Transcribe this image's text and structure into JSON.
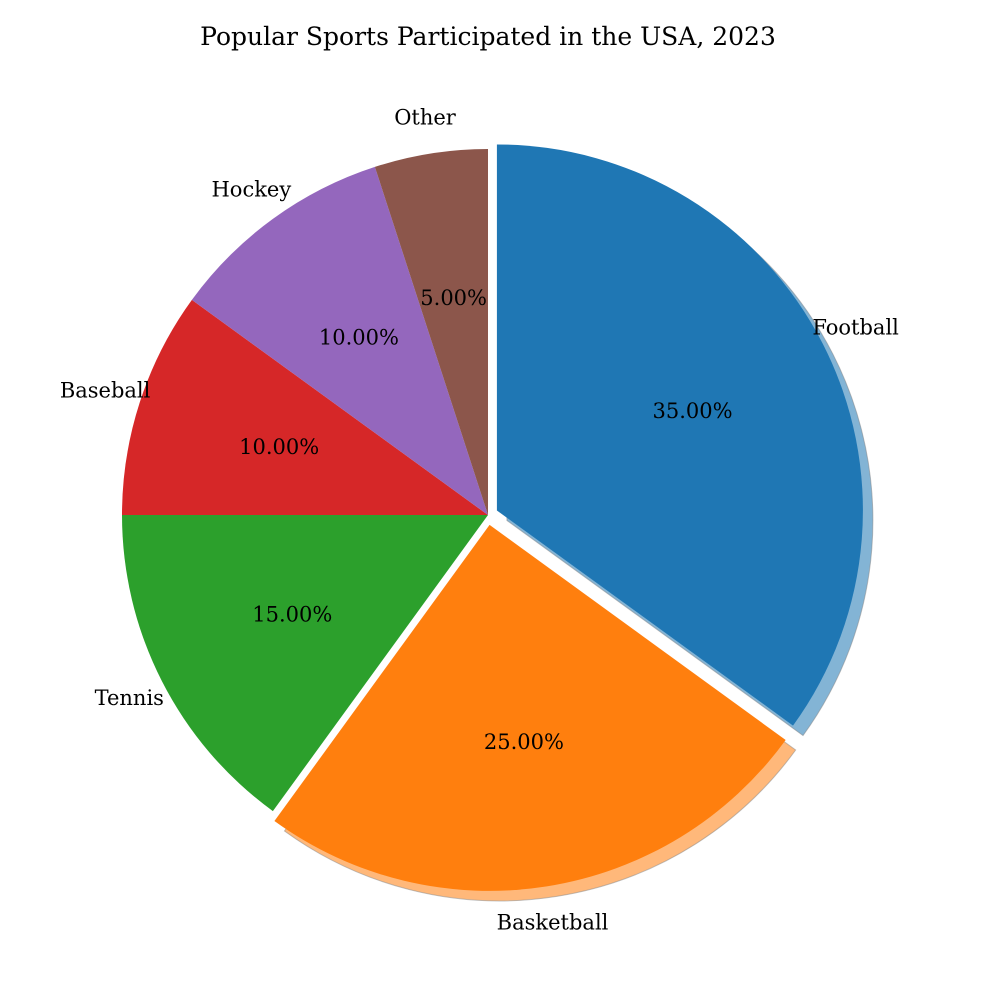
{
  "chart_data": {
    "type": "pie",
    "title": "Popular Sports Participated in the USA, 2023",
    "categories": [
      "Football",
      "Basketball",
      "Tennis",
      "Baseball",
      "Hockey",
      "Other"
    ],
    "values": [
      35,
      25,
      15,
      10,
      10,
      5
    ],
    "value_labels": [
      "35.00%",
      "25.00%",
      "15.00%",
      "10.00%",
      "10.00%",
      "5.00%"
    ],
    "colors": [
      "#1f77b4",
      "#ff7f0e",
      "#2ca02c",
      "#d62728",
      "#9467bd",
      "#8c564b"
    ],
    "start_angle_deg": 90,
    "direction": "clockwise",
    "shadow": true,
    "exploded": [
      "Football",
      "Basketball"
    ],
    "legend": "none"
  }
}
